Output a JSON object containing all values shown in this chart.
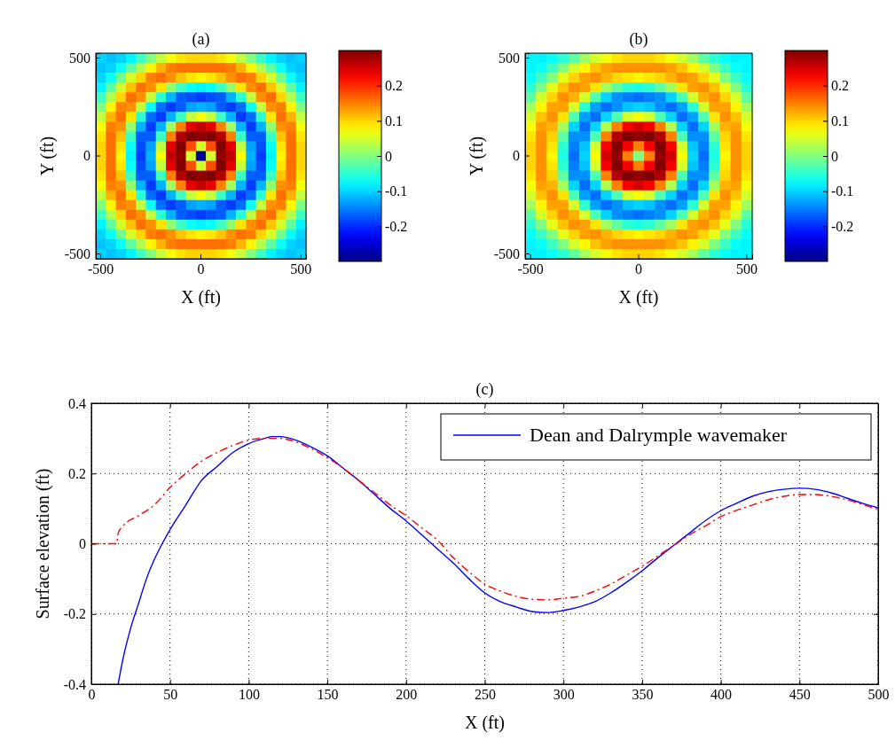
{
  "chart_data": [
    {
      "type": "heatmap",
      "title": "(a)",
      "xlabel": "X (ft)",
      "ylabel": "Y (ft)",
      "clim": [
        -0.3,
        0.3
      ],
      "cticks": [
        -0.2,
        -0.1,
        0,
        0.1,
        0.2
      ],
      "categories": [
        "-500",
        null,
        null,
        null,
        null,
        null,
        null,
        null,
        null,
        null,
        "0",
        null,
        null,
        null,
        null,
        null,
        null,
        null,
        null,
        null,
        "500"
      ],
      "y_categories": [
        "500",
        null,
        null,
        null,
        null,
        null,
        null,
        null,
        null,
        null,
        "0",
        null,
        null,
        null,
        null,
        null,
        null,
        null,
        null,
        null,
        "-500"
      ],
      "cells": [
        [
          -0.1,
          -0.11,
          -0.1,
          -0.08,
          -0.04,
          0,
          0.04,
          0.07,
          0.09,
          0.1,
          0.1,
          0.1,
          0.09,
          0.07,
          0.04,
          0,
          -0.04,
          -0.08,
          -0.1,
          -0.11,
          -0.1
        ],
        [
          -0.11,
          -0.1,
          -0.07,
          -0.02,
          0.03,
          0.08,
          0.12,
          0.15,
          0.16,
          0.16,
          0.16,
          0.16,
          0.16,
          0.15,
          0.12,
          0.08,
          0.03,
          -0.02,
          -0.07,
          -0.1,
          -0.11
        ],
        [
          -0.1,
          -0.07,
          -0.01,
          0.05,
          0.1,
          0.15,
          0.16,
          0.14,
          0.11,
          0.09,
          0.08,
          0.09,
          0.11,
          0.14,
          0.16,
          0.15,
          0.1,
          0.05,
          -0.01,
          -0.07,
          -0.1
        ],
        [
          -0.08,
          -0.02,
          0.05,
          0.11,
          0.16,
          0.14,
          0.09,
          0.01,
          -0.04,
          -0.07,
          -0.08,
          -0.07,
          -0.04,
          0.01,
          0.09,
          0.14,
          0.16,
          0.11,
          0.05,
          -0.02,
          -0.08
        ],
        [
          -0.04,
          0.03,
          0.1,
          0.16,
          0.14,
          0.04,
          -0.05,
          -0.12,
          -0.17,
          -0.18,
          -0.19,
          -0.18,
          -0.17,
          -0.12,
          -0.05,
          0.04,
          0.14,
          0.16,
          0.1,
          0.03,
          -0.04
        ],
        [
          0,
          0.08,
          0.15,
          0.14,
          0.04,
          -0.07,
          -0.16,
          -0.19,
          -0.17,
          -0.13,
          -0.12,
          -0.13,
          -0.17,
          -0.19,
          -0.16,
          -0.07,
          0.04,
          0.14,
          0.15,
          0.08,
          0
        ],
        [
          0.04,
          0.12,
          0.16,
          0.09,
          -0.05,
          -0.16,
          -0.19,
          -0.12,
          -0.04,
          0.04,
          0.07,
          0.04,
          -0.04,
          -0.12,
          -0.19,
          -0.16,
          -0.05,
          0.09,
          0.16,
          0.12,
          0.04
        ],
        [
          0.07,
          0.15,
          0.14,
          0.01,
          -0.12,
          -0.19,
          -0.12,
          0.02,
          0.15,
          0.24,
          0.26,
          0.24,
          0.15,
          0.02,
          -0.12,
          -0.19,
          -0.12,
          0.01,
          0.14,
          0.15,
          0.07
        ],
        [
          0.09,
          0.16,
          0.11,
          -0.04,
          -0.17,
          -0.17,
          -0.04,
          0.15,
          0.27,
          0.3,
          0.29,
          0.3,
          0.27,
          0.15,
          -0.04,
          -0.17,
          -0.17,
          -0.04,
          0.11,
          0.16,
          0.09
        ],
        [
          0.1,
          0.16,
          0.09,
          -0.07,
          -0.18,
          -0.13,
          0.04,
          0.24,
          0.3,
          0.18,
          0.05,
          0.18,
          0.3,
          0.24,
          0.04,
          -0.13,
          -0.18,
          -0.07,
          0.09,
          0.16,
          0.1
        ],
        [
          0.1,
          0.16,
          0.08,
          -0.08,
          -0.19,
          -0.12,
          0.07,
          0.26,
          0.29,
          0.05,
          -0.29,
          0.05,
          0.29,
          0.26,
          0.07,
          -0.12,
          -0.19,
          -0.08,
          0.08,
          0.16,
          0.1
        ],
        [
          0.1,
          0.16,
          0.09,
          -0.07,
          -0.18,
          -0.13,
          0.04,
          0.24,
          0.3,
          0.18,
          0.05,
          0.18,
          0.3,
          0.24,
          0.04,
          -0.13,
          -0.18,
          -0.07,
          0.09,
          0.16,
          0.1
        ],
        [
          0.09,
          0.16,
          0.11,
          -0.04,
          -0.17,
          -0.17,
          -0.04,
          0.15,
          0.27,
          0.3,
          0.29,
          0.3,
          0.27,
          0.15,
          -0.04,
          -0.17,
          -0.17,
          -0.04,
          0.11,
          0.16,
          0.09
        ],
        [
          0.07,
          0.15,
          0.14,
          0.01,
          -0.12,
          -0.19,
          -0.12,
          0.02,
          0.15,
          0.24,
          0.26,
          0.24,
          0.15,
          0.02,
          -0.12,
          -0.19,
          -0.12,
          0.01,
          0.14,
          0.15,
          0.07
        ],
        [
          0.04,
          0.12,
          0.16,
          0.09,
          -0.05,
          -0.16,
          -0.19,
          -0.12,
          -0.04,
          0.04,
          0.07,
          0.04,
          -0.04,
          -0.12,
          -0.19,
          -0.16,
          -0.05,
          0.09,
          0.16,
          0.12,
          0.04
        ],
        [
          0,
          0.08,
          0.15,
          0.14,
          0.04,
          -0.07,
          -0.16,
          -0.19,
          -0.17,
          -0.13,
          -0.12,
          -0.13,
          -0.17,
          -0.19,
          -0.16,
          -0.07,
          0.04,
          0.14,
          0.15,
          0.08,
          0
        ],
        [
          -0.04,
          0.03,
          0.1,
          0.16,
          0.14,
          0.04,
          -0.05,
          -0.12,
          -0.17,
          -0.18,
          -0.19,
          -0.18,
          -0.17,
          -0.12,
          -0.05,
          0.04,
          0.14,
          0.16,
          0.1,
          0.03,
          -0.04
        ],
        [
          -0.08,
          -0.02,
          0.05,
          0.11,
          0.16,
          0.14,
          0.09,
          0.01,
          -0.04,
          -0.07,
          -0.08,
          -0.07,
          -0.04,
          0.01,
          0.09,
          0.14,
          0.16,
          0.11,
          0.05,
          -0.02,
          -0.08
        ],
        [
          -0.1,
          -0.07,
          -0.01,
          0.05,
          0.1,
          0.15,
          0.16,
          0.14,
          0.11,
          0.09,
          0.08,
          0.09,
          0.11,
          0.14,
          0.16,
          0.15,
          0.1,
          0.05,
          -0.01,
          -0.07,
          -0.1
        ],
        [
          -0.11,
          -0.1,
          -0.07,
          -0.02,
          0.03,
          0.08,
          0.12,
          0.15,
          0.16,
          0.16,
          0.16,
          0.16,
          0.16,
          0.15,
          0.12,
          0.08,
          0.03,
          -0.02,
          -0.07,
          -0.1,
          -0.11
        ],
        [
          -0.1,
          -0.11,
          -0.1,
          -0.08,
          -0.04,
          0,
          0.04,
          0.07,
          0.09,
          0.1,
          0.1,
          0.1,
          0.09,
          0.07,
          0.04,
          0,
          -0.04,
          -0.08,
          -0.1,
          -0.11,
          -0.1
        ]
      ]
    },
    {
      "type": "heatmap",
      "title": "(b)",
      "xlabel": "X (ft)",
      "ylabel": "Y (ft)",
      "clim": [
        -0.3,
        0.3
      ],
      "cticks": [
        -0.2,
        -0.1,
        0,
        0.1,
        0.2
      ],
      "categories": [
        "-500",
        null,
        null,
        null,
        null,
        null,
        null,
        null,
        null,
        null,
        "0",
        null,
        null,
        null,
        null,
        null,
        null,
        null,
        null,
        null,
        "500"
      ],
      "y_categories": [
        "500",
        null,
        null,
        null,
        null,
        null,
        null,
        null,
        null,
        null,
        "0",
        null,
        null,
        null,
        null,
        null,
        null,
        null,
        null,
        null,
        "-500"
      ],
      "cells": [
        [
          -0.08,
          -0.08,
          -0.07,
          -0.05,
          -0.02,
          0.02,
          0.05,
          0.07,
          0.09,
          0.1,
          0.1,
          0.1,
          0.09,
          0.07,
          0.05,
          0.02,
          -0.02,
          -0.05,
          -0.07,
          -0.08,
          -0.08
        ],
        [
          -0.08,
          -0.07,
          -0.04,
          0,
          0.05,
          0.08,
          0.11,
          0.13,
          0.14,
          0.14,
          0.14,
          0.14,
          0.14,
          0.13,
          0.11,
          0.08,
          0.05,
          0,
          -0.04,
          -0.07,
          -0.08
        ],
        [
          -0.07,
          -0.04,
          0,
          0.06,
          0.1,
          0.13,
          0.14,
          0.12,
          0.1,
          0.09,
          0.08,
          0.09,
          0.1,
          0.12,
          0.14,
          0.13,
          0.1,
          0.06,
          0,
          -0.04,
          -0.07
        ],
        [
          -0.05,
          0,
          0.06,
          0.11,
          0.14,
          0.13,
          0.09,
          0.02,
          -0.02,
          -0.05,
          -0.06,
          -0.05,
          -0.02,
          0.02,
          0.09,
          0.13,
          0.14,
          0.11,
          0.06,
          0,
          -0.05
        ],
        [
          -0.02,
          0.05,
          0.1,
          0.14,
          0.12,
          0.05,
          -0.03,
          -0.1,
          -0.14,
          -0.15,
          -0.16,
          -0.15,
          -0.14,
          -0.1,
          -0.03,
          0.05,
          0.12,
          0.14,
          0.1,
          0.05,
          -0.02
        ],
        [
          0.02,
          0.08,
          0.13,
          0.13,
          0.05,
          -0.05,
          -0.13,
          -0.16,
          -0.14,
          -0.11,
          -0.1,
          -0.11,
          -0.14,
          -0.16,
          -0.13,
          -0.05,
          0.05,
          0.13,
          0.13,
          0.08,
          0.02
        ],
        [
          0.05,
          0.11,
          0.14,
          0.09,
          -0.03,
          -0.13,
          -0.16,
          -0.1,
          -0.03,
          0.05,
          0.07,
          0.05,
          -0.03,
          -0.1,
          -0.16,
          -0.13,
          -0.03,
          0.09,
          0.14,
          0.11,
          0.05
        ],
        [
          0.07,
          0.13,
          0.12,
          0.02,
          -0.1,
          -0.16,
          -0.1,
          0.03,
          0.15,
          0.23,
          0.25,
          0.23,
          0.15,
          0.03,
          -0.1,
          -0.16,
          -0.1,
          0.02,
          0.12,
          0.13,
          0.07
        ],
        [
          0.09,
          0.14,
          0.1,
          -0.02,
          -0.14,
          -0.14,
          -0.03,
          0.15,
          0.27,
          0.3,
          0.29,
          0.3,
          0.27,
          0.15,
          -0.03,
          -0.14,
          -0.14,
          -0.02,
          0.1,
          0.14,
          0.09
        ],
        [
          0.1,
          0.14,
          0.09,
          -0.05,
          -0.15,
          -0.11,
          0.05,
          0.23,
          0.3,
          0.23,
          0.15,
          0.23,
          0.3,
          0.23,
          0.05,
          -0.11,
          -0.15,
          -0.05,
          0.09,
          0.14,
          0.1
        ],
        [
          0.1,
          0.14,
          0.08,
          -0.06,
          -0.16,
          -0.1,
          0.07,
          0.25,
          0.29,
          0.15,
          0,
          0.15,
          0.29,
          0.25,
          0.07,
          -0.1,
          -0.16,
          -0.06,
          0.08,
          0.14,
          0.1
        ],
        [
          0.1,
          0.14,
          0.09,
          -0.05,
          -0.15,
          -0.11,
          0.05,
          0.23,
          0.3,
          0.23,
          0.15,
          0.23,
          0.3,
          0.23,
          0.05,
          -0.11,
          -0.15,
          -0.05,
          0.09,
          0.14,
          0.1
        ],
        [
          0.09,
          0.14,
          0.1,
          -0.02,
          -0.14,
          -0.14,
          -0.03,
          0.15,
          0.27,
          0.3,
          0.29,
          0.3,
          0.27,
          0.15,
          -0.03,
          -0.14,
          -0.14,
          -0.02,
          0.1,
          0.14,
          0.09
        ],
        [
          0.07,
          0.13,
          0.12,
          0.02,
          -0.1,
          -0.16,
          -0.1,
          0.03,
          0.15,
          0.23,
          0.25,
          0.23,
          0.15,
          0.03,
          -0.1,
          -0.16,
          -0.1,
          0.02,
          0.12,
          0.13,
          0.07
        ],
        [
          0.05,
          0.11,
          0.14,
          0.09,
          -0.03,
          -0.13,
          -0.16,
          -0.1,
          -0.03,
          0.05,
          0.07,
          0.05,
          -0.03,
          -0.1,
          -0.16,
          -0.13,
          -0.03,
          0.09,
          0.14,
          0.11,
          0.05
        ],
        [
          0.02,
          0.08,
          0.13,
          0.13,
          0.05,
          -0.05,
          -0.13,
          -0.16,
          -0.14,
          -0.11,
          -0.1,
          -0.11,
          -0.14,
          -0.16,
          -0.13,
          -0.05,
          0.05,
          0.13,
          0.13,
          0.08,
          0.02
        ],
        [
          -0.02,
          0.05,
          0.1,
          0.14,
          0.12,
          0.05,
          -0.03,
          -0.1,
          -0.14,
          -0.15,
          -0.16,
          -0.15,
          -0.14,
          -0.1,
          -0.03,
          0.05,
          0.12,
          0.14,
          0.1,
          0.05,
          -0.02
        ],
        [
          -0.05,
          0,
          0.06,
          0.11,
          0.14,
          0.13,
          0.09,
          0.02,
          -0.02,
          -0.05,
          -0.06,
          -0.05,
          -0.02,
          0.02,
          0.09,
          0.13,
          0.14,
          0.11,
          0.06,
          0,
          -0.05
        ],
        [
          -0.07,
          -0.04,
          0,
          0.06,
          0.1,
          0.13,
          0.14,
          0.12,
          0.1,
          0.09,
          0.08,
          0.09,
          0.1,
          0.12,
          0.14,
          0.13,
          0.1,
          0.06,
          0,
          -0.04,
          -0.07
        ],
        [
          -0.08,
          -0.07,
          -0.04,
          0,
          0.05,
          0.08,
          0.11,
          0.13,
          0.14,
          0.14,
          0.14,
          0.14,
          0.14,
          0.13,
          0.11,
          0.08,
          0.05,
          0,
          -0.04,
          -0.07,
          -0.08
        ],
        [
          -0.08,
          -0.08,
          -0.07,
          -0.05,
          -0.02,
          0.02,
          0.05,
          0.07,
          0.09,
          0.1,
          0.1,
          0.1,
          0.09,
          0.07,
          0.05,
          0.02,
          -0.02,
          -0.05,
          -0.07,
          -0.08,
          -0.08
        ]
      ]
    },
    {
      "type": "line",
      "title": "(c)",
      "xlabel": "X (ft)",
      "ylabel": "Surface elevation (ft)",
      "xlim": [
        0,
        500
      ],
      "xticks": [
        0,
        50,
        100,
        150,
        200,
        250,
        300,
        350,
        400,
        450,
        500
      ],
      "ylim": [
        -0.4,
        0.4
      ],
      "yticks": [
        -0.4,
        -0.2,
        0,
        0.2,
        0.4
      ],
      "grid": true,
      "legend": "top right",
      "series": [
        {
          "name": "Dean and Dalrymple wavemaker",
          "color": "#0000ff",
          "line_style": "solid",
          "x": [
            17,
            20,
            25,
            30,
            35,
            40,
            45,
            50,
            60,
            70,
            80,
            90,
            100,
            110,
            115,
            120,
            130,
            140,
            150,
            160,
            170,
            180,
            190,
            200,
            210,
            220,
            230,
            240,
            250,
            260,
            270,
            280,
            290,
            300,
            310,
            320,
            330,
            340,
            350,
            360,
            370,
            380,
            390,
            400,
            410,
            420,
            430,
            440,
            450,
            460,
            470,
            480,
            490,
            500
          ],
          "values": [
            -0.4,
            -0.33,
            -0.24,
            -0.17,
            -0.1,
            -0.045,
            0,
            0.04,
            0.11,
            0.18,
            0.22,
            0.26,
            0.285,
            0.3,
            0.305,
            0.305,
            0.295,
            0.275,
            0.25,
            0.215,
            0.18,
            0.14,
            0.1,
            0.065,
            0.025,
            -0.015,
            -0.055,
            -0.1,
            -0.14,
            -0.165,
            -0.18,
            -0.193,
            -0.196,
            -0.19,
            -0.18,
            -0.165,
            -0.14,
            -0.11,
            -0.077,
            -0.04,
            -0.005,
            0.03,
            0.065,
            0.094,
            0.115,
            0.135,
            0.148,
            0.155,
            0.158,
            0.155,
            0.145,
            0.13,
            0.115,
            0.102
          ]
        },
        {
          "color": "#ff0000",
          "line_style": "dashed",
          "x": [
            0,
            16,
            17,
            20,
            30,
            40,
            50,
            60,
            70,
            80,
            90,
            100,
            110,
            120,
            130,
            140,
            150,
            160,
            170,
            180,
            190,
            200,
            210,
            220,
            230,
            240,
            250,
            260,
            270,
            280,
            290,
            300,
            310,
            320,
            330,
            340,
            350,
            360,
            370,
            380,
            390,
            400,
            410,
            420,
            430,
            440,
            450,
            460,
            470,
            480,
            490,
            500
          ],
          "values": [
            0,
            0,
            0.03,
            0.05,
            0.08,
            0.11,
            0.16,
            0.2,
            0.235,
            0.26,
            0.28,
            0.295,
            0.3,
            0.3,
            0.29,
            0.27,
            0.245,
            0.215,
            0.18,
            0.145,
            0.11,
            0.08,
            0.045,
            0.01,
            -0.04,
            -0.08,
            -0.115,
            -0.135,
            -0.15,
            -0.158,
            -0.16,
            -0.155,
            -0.15,
            -0.135,
            -0.115,
            -0.09,
            -0.064,
            -0.035,
            -0.005,
            0.025,
            0.05,
            0.077,
            0.095,
            0.11,
            0.125,
            0.135,
            0.14,
            0.14,
            0.135,
            0.125,
            0.112,
            0.098
          ]
        }
      ]
    }
  ]
}
